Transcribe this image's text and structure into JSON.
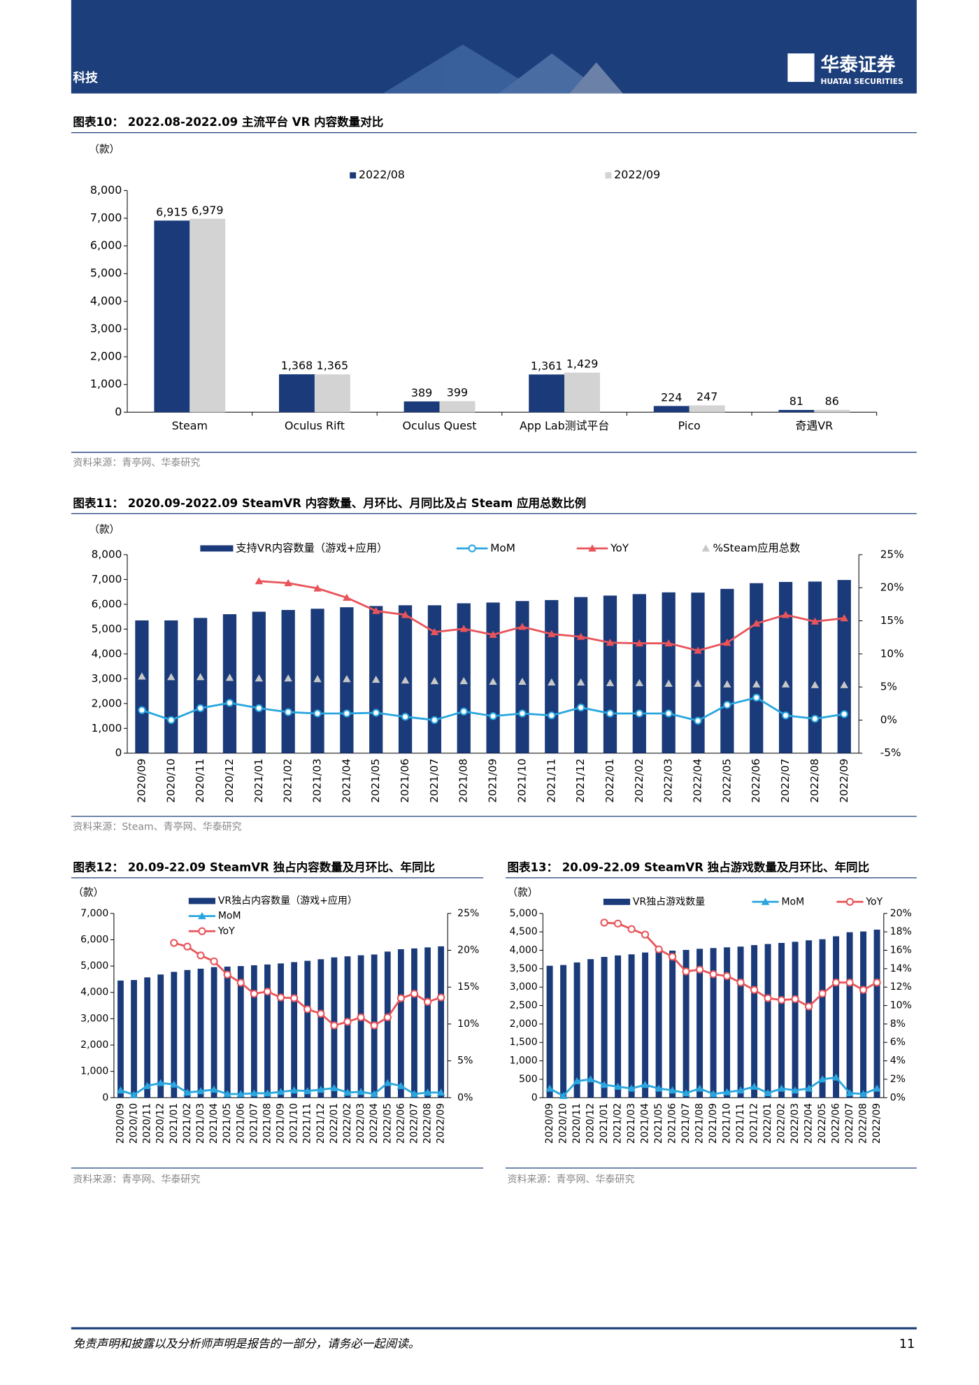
{
  "header": {
    "section": "科技",
    "logo": "华泰证券",
    "logo_en": "HUATAI SECURITIES"
  },
  "chart_data": [
    {
      "type": "bar",
      "title": "图表10：  2022.08-2022.09 主流平台 VR 内容数量对比",
      "unit": "（款）",
      "source": "资料来源：青亭网、华泰研究",
      "categories": [
        "Steam",
        "Oculus Rift",
        "Oculus Quest",
        "App Lab测试平台",
        "Pico",
        "奇遇VR"
      ],
      "series": [
        {
          "name": "2022/08",
          "color": "#1a3a7a",
          "values": [
            6915,
            1368,
            389,
            1361,
            224,
            81
          ],
          "value_labels": [
            "6,915",
            "1,368",
            "389",
            "1,361",
            "224",
            "81"
          ]
        },
        {
          "name": "2022/09",
          "color": "#d3d3d3",
          "values": [
            6979,
            1365,
            399,
            1429,
            247,
            86
          ],
          "value_labels": [
            "6,979",
            "1,365",
            "399",
            "1,429",
            "247",
            "86"
          ]
        }
      ],
      "ylim": [
        0,
        8000
      ],
      "yticks": [
        0,
        {
          "value": 1000,
          "label": "1,000"
        },
        {
          "value": 2000,
          "label": "2,000"
        },
        {
          "value": 3000,
          "label": "3,000"
        },
        {
          "value": 4000,
          "label": "4,000"
        },
        {
          "value": 5000,
          "label": "5,000"
        },
        {
          "value": 6000,
          "label": "6,000"
        },
        {
          "value": 7000,
          "label": "7,000"
        },
        {
          "value": 8000,
          "label": "8,000"
        }
      ],
      "grid": false
    },
    {
      "type": "combo",
      "title": "图表11：  2020.09-2022.09 SteamVR 内容数量、月环比、月同比及占 Steam 应用总数比例",
      "unit": "（款）",
      "source": "资料来源：Steam、青亭网、华泰研究",
      "categories": [
        "2020/09",
        "2020/10",
        "2020/11",
        "2020/12",
        "2021/01",
        "2021/02",
        "2021/03",
        "2021/04",
        "2021/05",
        "2021/06",
        "2021/07",
        "2021/08",
        "2021/09",
        "2021/10",
        "2021/11",
        "2021/12",
        "2022/01",
        "2022/02",
        "2022/03",
        "2022/04",
        "2022/05",
        "2022/06",
        "2022/07",
        "2022/08",
        "2022/09"
      ],
      "series": [
        {
          "name": "支持VR内容数量（游戏+应用）",
          "type": "bar",
          "color": "#1a3a7a",
          "values": [
            5350,
            5350,
            5450,
            5600,
            5700,
            5770,
            5820,
            5880,
            5930,
            5960,
            5960,
            6040,
            6070,
            6130,
            6170,
            6290,
            6350,
            6410,
            6480,
            6470,
            6620,
            6850,
            6900,
            6915,
            6979
          ]
        },
        {
          "name": "MoM",
          "type": "line",
          "axis": "y2",
          "color": "#29a6de",
          "marker": "circle",
          "values": [
            1.5,
            0.0,
            1.8,
            2.6,
            1.8,
            1.2,
            1.0,
            1.0,
            1.1,
            0.5,
            0.0,
            1.3,
            0.6,
            1.0,
            0.7,
            1.9,
            1.0,
            1.0,
            1.0,
            -0.1,
            2.3,
            3.4,
            0.7,
            0.2,
            0.9
          ]
        },
        {
          "name": "YoY",
          "type": "line",
          "axis": "y2",
          "color": "#e8545a",
          "marker": "triangle",
          "values": [
            null,
            null,
            null,
            null,
            21.0,
            20.7,
            19.9,
            18.5,
            16.5,
            15.9,
            13.3,
            13.8,
            12.9,
            14.1,
            13.0,
            12.6,
            11.7,
            11.6,
            11.6,
            10.5,
            11.7,
            14.6,
            15.9,
            14.9,
            15.4
          ]
        },
        {
          "name": "%Steam应用总数",
          "type": "marker",
          "axis": "y2",
          "color": "#c8c8c8",
          "marker": "triangle",
          "values": [
            6.6,
            6.5,
            6.5,
            6.4,
            6.3,
            6.3,
            6.2,
            6.2,
            6.1,
            6.0,
            5.9,
            5.9,
            5.8,
            5.8,
            5.7,
            5.7,
            5.6,
            5.6,
            5.5,
            5.5,
            5.4,
            5.4,
            5.4,
            5.3,
            5.3
          ]
        }
      ],
      "ylim": [
        0,
        8000
      ],
      "yticks": [
        0,
        {
          "value": 1000,
          "label": "1,000"
        },
        {
          "value": 2000,
          "label": "2,000"
        },
        {
          "value": 3000,
          "label": "3,000"
        },
        {
          "value": 4000,
          "label": "4,000"
        },
        {
          "value": 5000,
          "label": "5,000"
        },
        {
          "value": 6000,
          "label": "6,000"
        },
        {
          "value": 7000,
          "label": "7,000"
        },
        {
          "value": 8000,
          "label": "8,000"
        }
      ],
      "y2lim": [
        -5,
        25
      ],
      "y2ticks": [
        {
          "value": -5,
          "label": "-5%"
        },
        {
          "value": 0,
          "label": "0%"
        },
        {
          "value": 5,
          "label": "5%"
        },
        {
          "value": 10,
          "label": "10%"
        },
        {
          "value": 15,
          "label": "15%"
        },
        {
          "value": 20,
          "label": "20%"
        },
        {
          "value": 25,
          "label": "25%"
        }
      ],
      "grid": false
    },
    {
      "type": "combo",
      "title": "图表12：  20.09-22.09 SteamVR 独占内容数量及月环比、年同比",
      "unit": "（款）",
      "source": "资料来源：青亭网、华泰研究",
      "categories": [
        "2020/09",
        "2020/10",
        "2020/11",
        "2020/12",
        "2021/01",
        "2021/02",
        "2021/03",
        "2021/04",
        "2021/05",
        "2021/06",
        "2021/07",
        "2021/08",
        "2021/09",
        "2021/10",
        "2021/11",
        "2021/12",
        "2022/01",
        "2022/02",
        "2022/03",
        "2022/04",
        "2022/05",
        "2022/06",
        "2022/07",
        "2022/08",
        "2022/09"
      ],
      "series": [
        {
          "name": "VR独占内容数量（游戏+应用）",
          "type": "bar",
          "color": "#1a3a7a",
          "values": [
            4450,
            4470,
            4570,
            4680,
            4780,
            4850,
            4900,
            4960,
            4980,
            5000,
            5030,
            5060,
            5100,
            5150,
            5200,
            5260,
            5330,
            5370,
            5410,
            5440,
            5550,
            5640,
            5670,
            5710,
            5750
          ]
        },
        {
          "name": "MoM",
          "type": "line",
          "axis": "y2",
          "color": "#29a6de",
          "marker": "triangle",
          "values": [
            1.0,
            0.4,
            1.6,
            2.0,
            1.8,
            0.7,
            0.9,
            1.1,
            0.5,
            0.5,
            0.6,
            0.6,
            0.8,
            1.0,
            0.9,
            1.1,
            1.3,
            0.7,
            0.8,
            0.5,
            2.0,
            1.6,
            0.5,
            0.7,
            0.7
          ]
        },
        {
          "name": "YoY",
          "type": "line",
          "axis": "y2",
          "color": "#e8545a",
          "marker": "circle",
          "values": [
            null,
            null,
            null,
            null,
            21.0,
            20.5,
            19.3,
            18.5,
            16.7,
            15.6,
            14.1,
            14.4,
            13.6,
            13.5,
            12.0,
            11.4,
            9.8,
            10.3,
            10.9,
            9.8,
            10.9,
            13.5,
            14.1,
            13.0,
            13.6
          ]
        }
      ],
      "ylim": [
        0,
        7000
      ],
      "yticks": [
        0,
        {
          "value": 1000,
          "label": "1,000"
        },
        {
          "value": 2000,
          "label": "2,000"
        },
        {
          "value": 3000,
          "label": "3,000"
        },
        {
          "value": 4000,
          "label": "4,000"
        },
        {
          "value": 5000,
          "label": "5,000"
        },
        {
          "value": 6000,
          "label": "6,000"
        },
        {
          "value": 7000,
          "label": "7,000"
        }
      ],
      "y2lim": [
        0,
        25
      ],
      "y2ticks": [
        {
          "value": 0,
          "label": "0%"
        },
        {
          "value": 5,
          "label": "5%"
        },
        {
          "value": 10,
          "label": "10%"
        },
        {
          "value": 15,
          "label": "15%"
        },
        {
          "value": 20,
          "label": "20%"
        },
        {
          "value": 25,
          "label": "25%"
        }
      ],
      "grid": false
    },
    {
      "type": "combo",
      "title": "图表13：  20.09-22.09 SteamVR 独占游戏数量及月环比、年同比",
      "unit": "（款）",
      "source": "资料来源：青亭网、华泰研究",
      "categories": [
        "2020/09",
        "2020/10",
        "2020/11",
        "2020/12",
        "2021/01",
        "2021/02",
        "2021/03",
        "2021/04",
        "2021/05",
        "2021/06",
        "2021/07",
        "2021/08",
        "2021/09",
        "2021/10",
        "2021/11",
        "2021/12",
        "2022/01",
        "2022/02",
        "2022/03",
        "2022/04",
        "2022/05",
        "2022/06",
        "2022/07",
        "2022/08",
        "2022/09"
      ],
      "series": [
        {
          "name": "VR独占游戏数量",
          "type": "bar",
          "color": "#1a3a7a",
          "values": [
            3580,
            3600,
            3670,
            3760,
            3820,
            3860,
            3890,
            3940,
            3960,
            3990,
            4010,
            4040,
            4060,
            4080,
            4100,
            4140,
            4170,
            4200,
            4230,
            4270,
            4300,
            4380,
            4490,
            4510,
            4560
          ]
        },
        {
          "name": "MoM",
          "type": "line",
          "axis": "y2",
          "color": "#29a6de",
          "marker": "triangle",
          "values": [
            1.0,
            0.2,
            1.8,
            2.0,
            1.4,
            1.2,
            1.0,
            1.4,
            1.0,
            0.8,
            0.5,
            1.0,
            0.4,
            0.6,
            0.8,
            1.2,
            0.5,
            1.0,
            0.8,
            1.0,
            2.0,
            2.2,
            0.5,
            0.4,
            1.0
          ]
        },
        {
          "name": "YoY",
          "type": "line",
          "axis": "y2",
          "color": "#e8545a",
          "marker": "circle",
          "values": [
            null,
            null,
            null,
            null,
            19.0,
            18.9,
            18.3,
            17.7,
            16.1,
            15.3,
            13.7,
            13.9,
            13.4,
            13.2,
            12.5,
            11.7,
            10.8,
            10.6,
            10.7,
            9.9,
            11.3,
            12.5,
            12.5,
            11.7,
            12.5
          ]
        }
      ],
      "ylim": [
        0,
        5000
      ],
      "yticks": [
        0,
        500,
        {
          "value": 1000,
          "label": "1,000"
        },
        {
          "value": 1500,
          "label": "1,500"
        },
        {
          "value": 2000,
          "label": "2,000"
        },
        {
          "value": 2500,
          "label": "2,500"
        },
        {
          "value": 3000,
          "label": "3,000"
        },
        {
          "value": 3500,
          "label": "3,500"
        },
        {
          "value": 4000,
          "label": "4,000"
        },
        {
          "value": 4500,
          "label": "4,500"
        },
        {
          "value": 5000,
          "label": "5,000"
        }
      ],
      "y2lim": [
        0,
        20
      ],
      "y2ticks": [
        {
          "value": 0,
          "label": "0%"
        },
        {
          "value": 2,
          "label": "2%"
        },
        {
          "value": 4,
          "label": "4%"
        },
        {
          "value": 6,
          "label": "6%"
        },
        {
          "value": 8,
          "label": "8%"
        },
        {
          "value": 10,
          "label": "10%"
        },
        {
          "value": 12,
          "label": "12%"
        },
        {
          "value": 14,
          "label": "14%"
        },
        {
          "value": 16,
          "label": "16%"
        },
        {
          "value": 18,
          "label": "18%"
        },
        {
          "value": 20,
          "label": "20%"
        }
      ],
      "grid": false
    }
  ],
  "footer": {
    "disclaimer": "免责声明和披露以及分析师声明是报告的一部分，请务必一起阅读。",
    "page_number": 11
  }
}
